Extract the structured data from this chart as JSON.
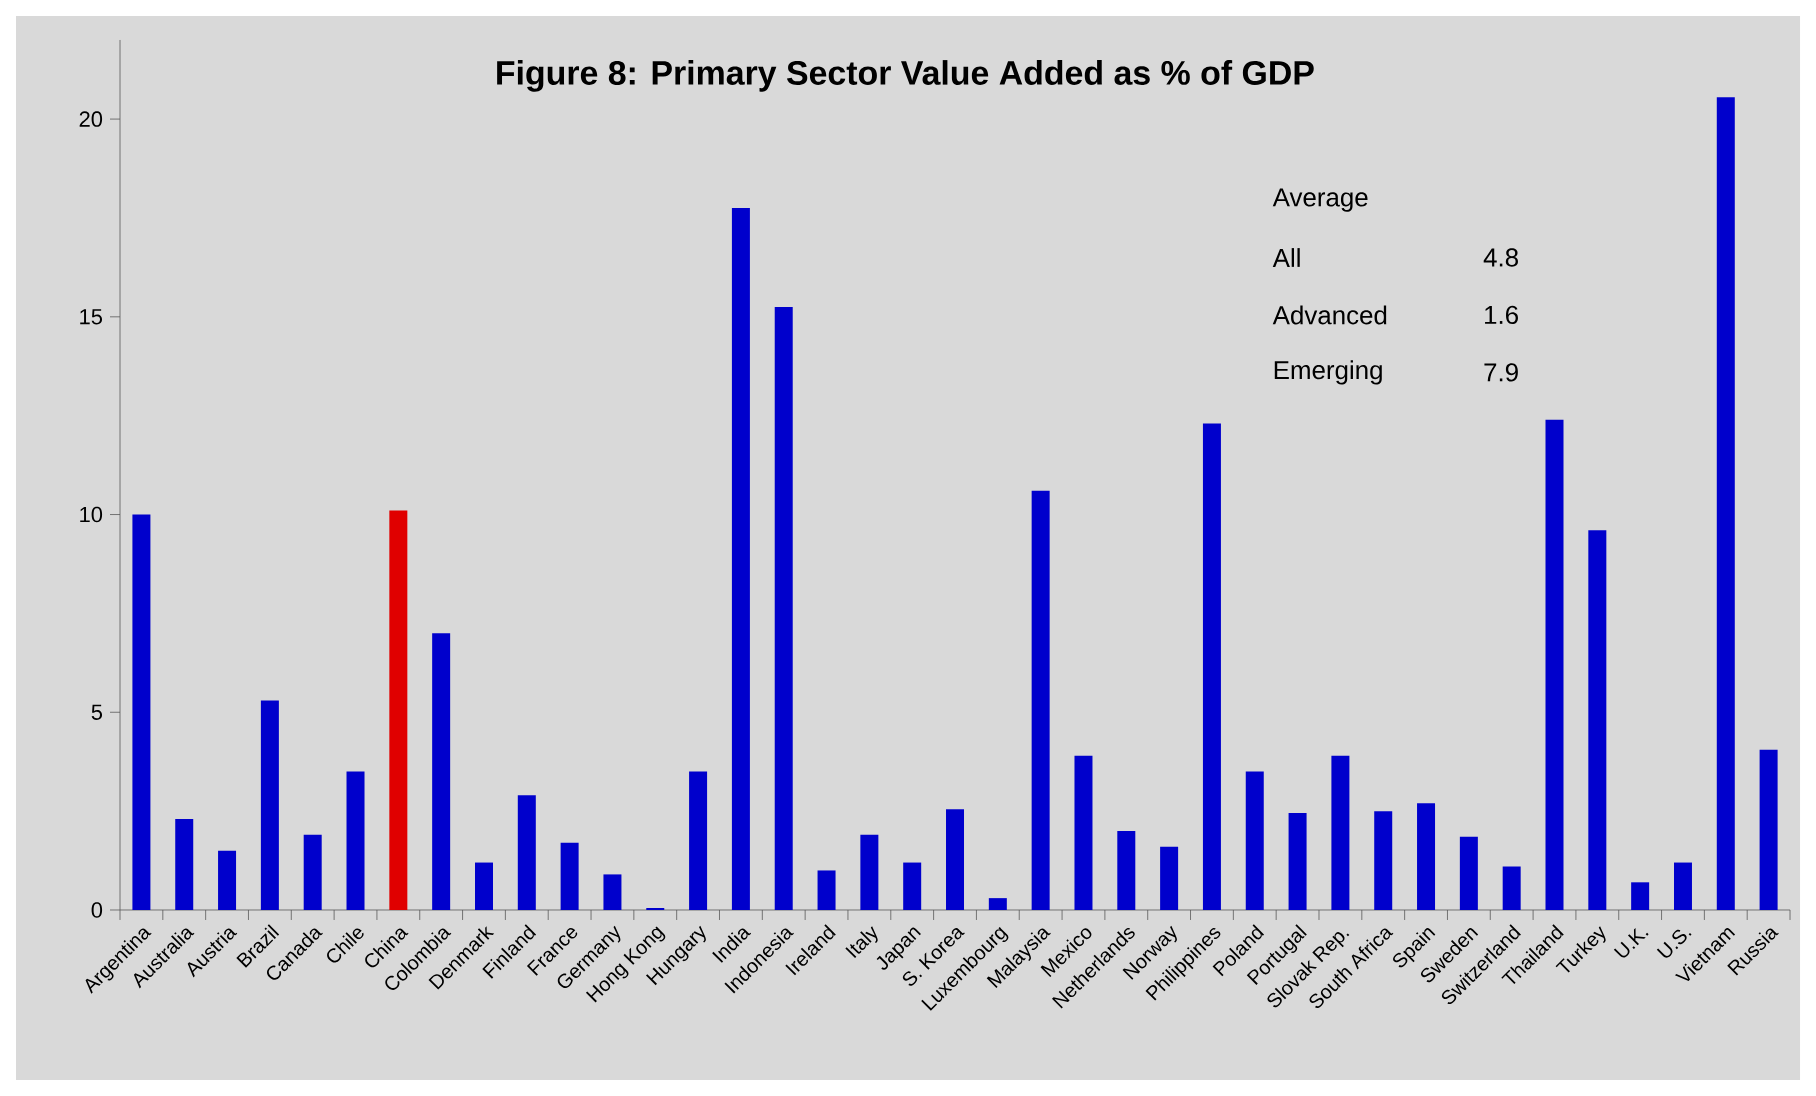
{
  "chart_data": {
    "type": "bar",
    "title": "Figure 8: Primary Sector Value Added as % of GDP",
    "categories": [
      "Argentina",
      "Australia",
      "Austria",
      "Brazil",
      "Canada",
      "Chile",
      "China",
      "Colombia",
      "Denmark",
      "Finland",
      "France",
      "Germany",
      "Hong Kong",
      "Hungary",
      "India",
      "Indonesia",
      "Ireland",
      "Italy",
      "Japan",
      "S. Korea",
      "Luxembourg",
      "Malaysia",
      "Mexico",
      "Netherlands",
      "Norway",
      "Philippines",
      "Poland",
      "Portugal",
      "Slovak Rep.",
      "South Africa",
      "Spain",
      "Sweden",
      "Switzerland",
      "Thailand",
      "Turkey",
      "U.K.",
      "U.S.",
      "Vietnam",
      "Russia"
    ],
    "values": [
      10.0,
      2.3,
      1.5,
      5.3,
      1.9,
      3.5,
      10.1,
      7.0,
      1.2,
      2.9,
      1.7,
      0.9,
      0.05,
      3.5,
      17.75,
      15.25,
      1.0,
      1.9,
      1.2,
      2.55,
      0.3,
      10.6,
      3.9,
      2.0,
      1.6,
      12.3,
      3.5,
      2.45,
      3.9,
      2.5,
      2.7,
      1.85,
      1.1,
      12.4,
      9.6,
      0.7,
      1.2,
      20.55,
      4.05
    ],
    "colors": [
      "#0000cc",
      "#0000cc",
      "#0000cc",
      "#0000cc",
      "#0000cc",
      "#0000cc",
      "#e00000",
      "#0000cc",
      "#0000cc",
      "#0000cc",
      "#0000cc",
      "#0000cc",
      "#0000cc",
      "#0000cc",
      "#0000cc",
      "#0000cc",
      "#0000cc",
      "#0000cc",
      "#0000cc",
      "#0000cc",
      "#0000cc",
      "#0000cc",
      "#0000cc",
      "#0000cc",
      "#0000cc",
      "#0000cc",
      "#0000cc",
      "#0000cc",
      "#0000cc",
      "#0000cc",
      "#0000cc",
      "#0000cc",
      "#0000cc",
      "#0000cc",
      "#0000cc",
      "#0000cc",
      "#0000cc",
      "#0000cc",
      "#0000cc"
    ],
    "ylim": [
      0,
      22
    ],
    "yticks": [
      0,
      5,
      10,
      15,
      20
    ],
    "annotations": [
      "Average",
      "All",
      "4.8",
      "Advanced",
      "1.6",
      "Emerging",
      "7.9"
    ]
  }
}
